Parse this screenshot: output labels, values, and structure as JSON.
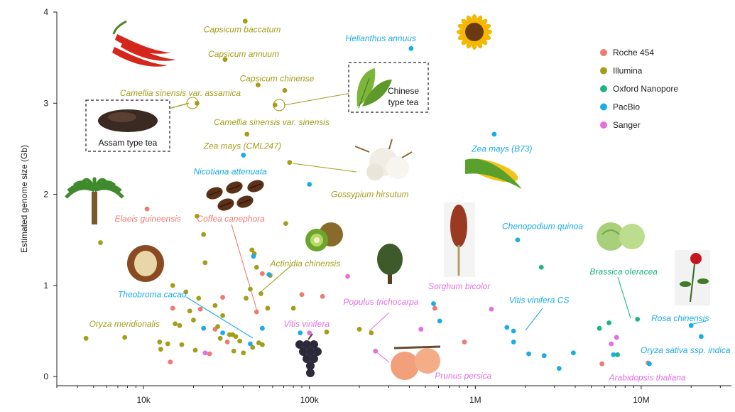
{
  "chart_data": {
    "type": "scatter",
    "x_scale": "log",
    "xlim": [
      3000,
      35000000
    ],
    "ylim": [
      -0.1,
      4
    ],
    "ylabel": "Estimated genome size (Gb)",
    "xlabel": "",
    "x_ticks": [
      {
        "value": 10000,
        "label": "10k"
      },
      {
        "value": 100000,
        "label": "100k"
      },
      {
        "value": 1000000,
        "label": "1M"
      },
      {
        "value": 10000000,
        "label": "10M"
      }
    ],
    "y_ticks": [
      {
        "value": 0,
        "label": "0"
      },
      {
        "value": 1,
        "label": "1"
      },
      {
        "value": 2,
        "label": "2"
      },
      {
        "value": 3,
        "label": "3"
      },
      {
        "value": 4,
        "label": "4"
      }
    ],
    "legend_position": "top-right",
    "colors": {
      "Roche 454": "#ee7b72",
      "Illumina": "#a39e1a",
      "Oxford Nanopore": "#1db583",
      "PacBio": "#1aace6",
      "Sanger": "#e46fe3"
    },
    "series": [
      {
        "name": "Roche 454",
        "points": [
          {
            "x": 10500,
            "y": 1.84
          },
          {
            "x": 14500,
            "y": 0.16
          },
          {
            "x": 15000,
            "y": 0.75
          },
          {
            "x": 22000,
            "y": 0.74
          },
          {
            "x": 25000,
            "y": 0.25
          },
          {
            "x": 27000,
            "y": 0.52
          },
          {
            "x": 30000,
            "y": 0.87
          },
          {
            "x": 32000,
            "y": 0.38
          },
          {
            "x": 48000,
            "y": 0.71
          },
          {
            "x": 52000,
            "y": 1.13
          },
          {
            "x": 90000,
            "y": 0.9
          },
          {
            "x": 120000,
            "y": 0.88
          },
          {
            "x": 570000,
            "y": 0.75
          },
          {
            "x": 860000,
            "y": 0.38
          },
          {
            "x": 5800000,
            "y": 0.14
          },
          {
            "x": 11000000,
            "y": 0.15
          }
        ]
      },
      {
        "name": "Illumina",
        "points": [
          {
            "x": 4500,
            "y": 0.42
          },
          {
            "x": 5500,
            "y": 1.47
          },
          {
            "x": 7700,
            "y": 0.43
          },
          {
            "x": 12500,
            "y": 0.38
          },
          {
            "x": 12700,
            "y": 0.3
          },
          {
            "x": 14000,
            "y": 0.36
          },
          {
            "x": 15000,
            "y": 1.0
          },
          {
            "x": 15500,
            "y": 0.58
          },
          {
            "x": 16500,
            "y": 0.56
          },
          {
            "x": 17000,
            "y": 0.35
          },
          {
            "x": 18000,
            "y": 0.93
          },
          {
            "x": 19000,
            "y": 0.72
          },
          {
            "x": 20000,
            "y": 0.62
          },
          {
            "x": 20500,
            "y": 0.29
          },
          {
            "x": 21000,
            "y": 3.0
          },
          {
            "x": 21500,
            "y": 0.86
          },
          {
            "x": 21000,
            "y": 1.76
          },
          {
            "x": 23000,
            "y": 1.56
          },
          {
            "x": 23500,
            "y": 1.25
          },
          {
            "x": 27000,
            "y": 0.78
          },
          {
            "x": 28000,
            "y": 0.55
          },
          {
            "x": 29000,
            "y": 0.42
          },
          {
            "x": 30000,
            "y": 0.67
          },
          {
            "x": 31000,
            "y": 3.48
          },
          {
            "x": 33000,
            "y": 0.46
          },
          {
            "x": 34500,
            "y": 0.46
          },
          {
            "x": 35000,
            "y": 0.28
          },
          {
            "x": 36000,
            "y": 0.44
          },
          {
            "x": 38000,
            "y": 0.39
          },
          {
            "x": 40000,
            "y": 0.26
          },
          {
            "x": 41000,
            "y": 3.9
          },
          {
            "x": 41500,
            "y": 0.86
          },
          {
            "x": 42000,
            "y": 2.66
          },
          {
            "x": 44000,
            "y": 0.96
          },
          {
            "x": 45000,
            "y": 1.39
          },
          {
            "x": 45500,
            "y": 0.32
          },
          {
            "x": 46500,
            "y": 1.35
          },
          {
            "x": 48000,
            "y": 1.2
          },
          {
            "x": 49000,
            "y": 3.2
          },
          {
            "x": 49500,
            "y": 0.37
          },
          {
            "x": 51000,
            "y": 0.91
          },
          {
            "x": 52000,
            "y": 0.35
          },
          {
            "x": 62000,
            "y": 2.98
          },
          {
            "x": 71000,
            "y": 3.14
          },
          {
            "x": 72000,
            "y": 1.68
          },
          {
            "x": 76000,
            "y": 2.35
          },
          {
            "x": 127000,
            "y": 0.49
          },
          {
            "x": 200000,
            "y": 0.52
          },
          {
            "x": 236000,
            "y": 0.48
          },
          {
            "x": 56000,
            "y": 0.75
          },
          {
            "x": 58000,
            "y": 1.11
          },
          {
            "x": 80000,
            "y": 0.75
          }
        ]
      },
      {
        "name": "Oxford Nanopore",
        "points": [
          {
            "x": 2500000,
            "y": 1.2
          },
          {
            "x": 5600000,
            "y": 0.53
          },
          {
            "x": 6400000,
            "y": 0.59
          },
          {
            "x": 9500000,
            "y": 0.63
          },
          {
            "x": 7200000,
            "y": 0.24
          }
        ]
      },
      {
        "name": "PacBio",
        "points": [
          {
            "x": 23000,
            "y": 0.53
          },
          {
            "x": 30000,
            "y": 0.48
          },
          {
            "x": 40000,
            "y": 2.43
          },
          {
            "x": 44000,
            "y": 0.36
          },
          {
            "x": 46000,
            "y": 1.32
          },
          {
            "x": 52000,
            "y": 0.53
          },
          {
            "x": 57000,
            "y": 1.12
          },
          {
            "x": 88000,
            "y": 0.48
          },
          {
            "x": 100000,
            "y": 2.11
          },
          {
            "x": 410000,
            "y": 3.6
          },
          {
            "x": 560000,
            "y": 0.8
          },
          {
            "x": 610000,
            "y": 0.61
          },
          {
            "x": 1300000,
            "y": 2.66
          },
          {
            "x": 1550000,
            "y": 0.54
          },
          {
            "x": 1800000,
            "y": 1.5
          },
          {
            "x": 1700000,
            "y": 0.5
          },
          {
            "x": 1700000,
            "y": 0.38
          },
          {
            "x": 2100000,
            "y": 0.25
          },
          {
            "x": 2600000,
            "y": 0.23
          },
          {
            "x": 3200000,
            "y": 0.09
          },
          {
            "x": 3900000,
            "y": 0.26
          },
          {
            "x": 7100000,
            "y": 0.43
          },
          {
            "x": 6800000,
            "y": 0.24
          },
          {
            "x": 20000000,
            "y": 0.56
          },
          {
            "x": 23000000,
            "y": 0.44
          },
          {
            "x": 11200000,
            "y": 0.14
          }
        ]
      },
      {
        "name": "Sanger",
        "points": [
          {
            "x": 23500,
            "y": 0.26
          },
          {
            "x": 100000,
            "y": 0.48
          },
          {
            "x": 170000,
            "y": 1.1
          },
          {
            "x": 250000,
            "y": 0.28
          },
          {
            "x": 470000,
            "y": 0.52
          },
          {
            "x": 1250000,
            "y": 0.74
          },
          {
            "x": 6600000,
            "y": 0.36
          },
          {
            "x": 7100000,
            "y": 0.43
          }
        ]
      }
    ],
    "annotations": [
      {
        "text": "Capsicum baccatum",
        "series": "Illumina",
        "x": 23000,
        "y": 3.81,
        "anchor": "start"
      },
      {
        "text": "Capsicum annuum",
        "series": "Illumina",
        "x": 24500,
        "y": 3.54,
        "anchor": "start"
      },
      {
        "text": "Capsicum chinense",
        "series": "Illumina",
        "x": 38000,
        "y": 3.27,
        "anchor": "start"
      },
      {
        "text": "Camellia sinensis var. assamica",
        "series": "Illumina",
        "x": 7200,
        "y": 3.11,
        "anchor": "start"
      },
      {
        "text": "Camellia sinensis var. sinensis",
        "series": "Illumina",
        "x": 26500,
        "y": 2.79,
        "anchor": "start"
      },
      {
        "text": "Zea mays (CML247)",
        "series": "Illumina",
        "x": 23000,
        "y": 2.53,
        "anchor": "start"
      },
      {
        "text": "Nicotiana attenuata",
        "series": "PacBio",
        "x": 20000,
        "y": 2.25,
        "anchor": "start"
      },
      {
        "text": "Gossypium hirsutum",
        "series": "Illumina",
        "x": 135000,
        "y": 2.0,
        "anchor": "start"
      },
      {
        "text": "Helianthus annuus",
        "series": "PacBio",
        "x": 165000,
        "y": 3.71,
        "anchor": "start"
      },
      {
        "text": "Zea mays (B73)",
        "series": "PacBio",
        "x": 950000,
        "y": 2.5,
        "anchor": "start"
      },
      {
        "text": "Elaeis guineensis",
        "series": "Roche 454",
        "x": 6700,
        "y": 1.73,
        "anchor": "start"
      },
      {
        "text": "Coffea canephora",
        "series": "Roche 454",
        "x": 21000,
        "y": 1.73,
        "anchor": "start"
      },
      {
        "text": "Actinidia chinensis",
        "series": "Illumina",
        "x": 58000,
        "y": 1.24,
        "anchor": "start"
      },
      {
        "text": "Chenopodium quinoa",
        "series": "PacBio",
        "x": 1450000,
        "y": 1.65,
        "anchor": "start"
      },
      {
        "text": "Brassica oleracea",
        "series": "Oxford Nanopore",
        "x": 4900000,
        "y": 1.15,
        "anchor": "start"
      },
      {
        "text": "Theobroma cacao",
        "series": "PacBio",
        "x": 7000,
        "y": 0.9,
        "anchor": "start"
      },
      {
        "text": "Sorghum bicolor",
        "series": "Sanger",
        "x": 520000,
        "y": 0.99,
        "anchor": "start"
      },
      {
        "text": "Populus trichocarpa",
        "series": "Sanger",
        "x": 160000,
        "y": 0.82,
        "anchor": "start"
      },
      {
        "text": "Vitis vinifera",
        "series": "Sanger",
        "x": 70000,
        "y": 0.58,
        "anchor": "start"
      },
      {
        "text": "Vitis vinifera CS",
        "series": "PacBio",
        "x": 1600000,
        "y": 0.84,
        "anchor": "start"
      },
      {
        "text": "Oryza meridionalis",
        "series": "Illumina",
        "x": 4700,
        "y": 0.58,
        "anchor": "start"
      },
      {
        "text": "Rosa chinensis",
        "series": "PacBio",
        "x": 11500000,
        "y": 0.64,
        "anchor": "start"
      },
      {
        "text": "Oryza sativa ssp. indica",
        "series": "PacBio",
        "x": 9900000,
        "y": 0.29,
        "anchor": "start"
      },
      {
        "text": "Prunus persica",
        "series": "Sanger",
        "x": 570000,
        "y": 0.01,
        "anchor": "start"
      },
      {
        "text": "Arabidopsis thaliana",
        "series": "Sanger",
        "x": 6400000,
        "y": -0.01,
        "anchor": "start"
      }
    ],
    "insets": [
      {
        "label_line1": "Assam type tea",
        "label_line2": ""
      },
      {
        "label_line1": "Chinese",
        "label_line2": "type tea"
      }
    ]
  }
}
